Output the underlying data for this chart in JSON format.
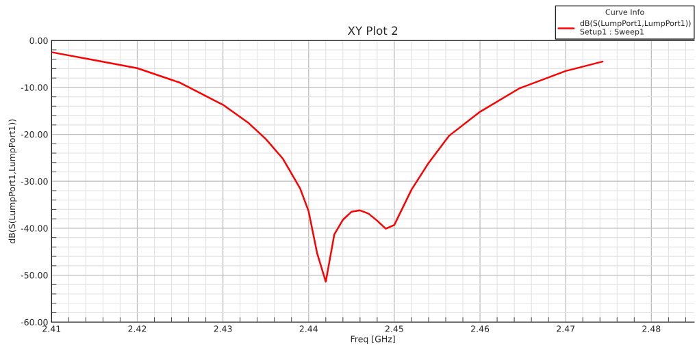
{
  "chart_data": {
    "type": "line",
    "title": "XY Plot 2",
    "xlabel": "Freq [GHz]",
    "ylabel": "dB(S(LumpPort1,LumpPort1))",
    "legend_title": "Curve Info",
    "series": [
      {
        "name": "dB(S(LumpPort1,LumpPort1))\nSetup1 : Sweep1",
        "color": "#ff0000",
        "x": [
          2.41,
          2.415,
          2.42,
          2.425,
          2.43,
          2.433,
          2.435,
          2.437,
          2.439,
          2.44,
          2.441,
          2.442,
          2.443,
          2.444,
          2.445,
          2.446,
          2.447,
          2.448,
          2.449,
          2.45,
          2.452,
          2.454,
          2.4564,
          2.46,
          2.4646,
          2.47,
          2.4743
        ],
        "values": [
          -2.5,
          -4.2,
          -5.9,
          -9.0,
          -13.7,
          -17.6,
          -21.0,
          -25.2,
          -31.5,
          -36.4,
          -45.4,
          -51.4,
          -41.3,
          -38.2,
          -36.5,
          -36.2,
          -36.9,
          -38.4,
          -40.1,
          -39.3,
          -31.8,
          -26.1,
          -20.3,
          -15.2,
          -10.2,
          -6.5,
          -4.5
        ]
      }
    ],
    "xlim": [
      2.41,
      2.485
    ],
    "xticks": [
      2.41,
      2.42,
      2.43,
      2.44,
      2.45,
      2.46,
      2.47,
      2.48
    ],
    "ylim": [
      -60,
      0
    ],
    "yticks": [
      {
        "value": 0,
        "label": "0.00"
      },
      {
        "value": -10,
        "label": "-10.00"
      },
      {
        "value": -20,
        "label": "-20.00"
      },
      {
        "value": -30,
        "label": "-30.00"
      },
      {
        "value": -40,
        "label": "-40.00"
      },
      {
        "value": -50,
        "label": "-50.00"
      },
      {
        "value": -60,
        "label": "-60.00"
      }
    ],
    "grid": true,
    "legend": "top right",
    "marker": "none",
    "line_style": "solid"
  }
}
